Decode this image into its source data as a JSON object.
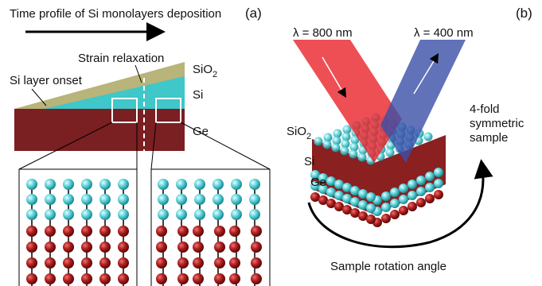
{
  "panel_a": {
    "label": "(a)",
    "title": "Time profile of Si monolayers deposition",
    "strain_label": "Strain relaxation",
    "onset_label": "Si layer onset",
    "layers": [
      {
        "text": "SiO",
        "subscript": "2"
      },
      {
        "text": "Si"
      },
      {
        "text": "Ge"
      }
    ]
  },
  "panel_b": {
    "label": "(b)",
    "beam_red": "λ = 800 nm",
    "beam_blue": "λ = 400 nm",
    "sample_label": [
      "4-fold",
      "symmetric",
      "sample"
    ],
    "layers": [
      {
        "text": "SiO",
        "subscript": "2"
      },
      {
        "text": "Si"
      },
      {
        "text": "Ge"
      }
    ],
    "rotation_label": "Sample rotation angle"
  }
}
